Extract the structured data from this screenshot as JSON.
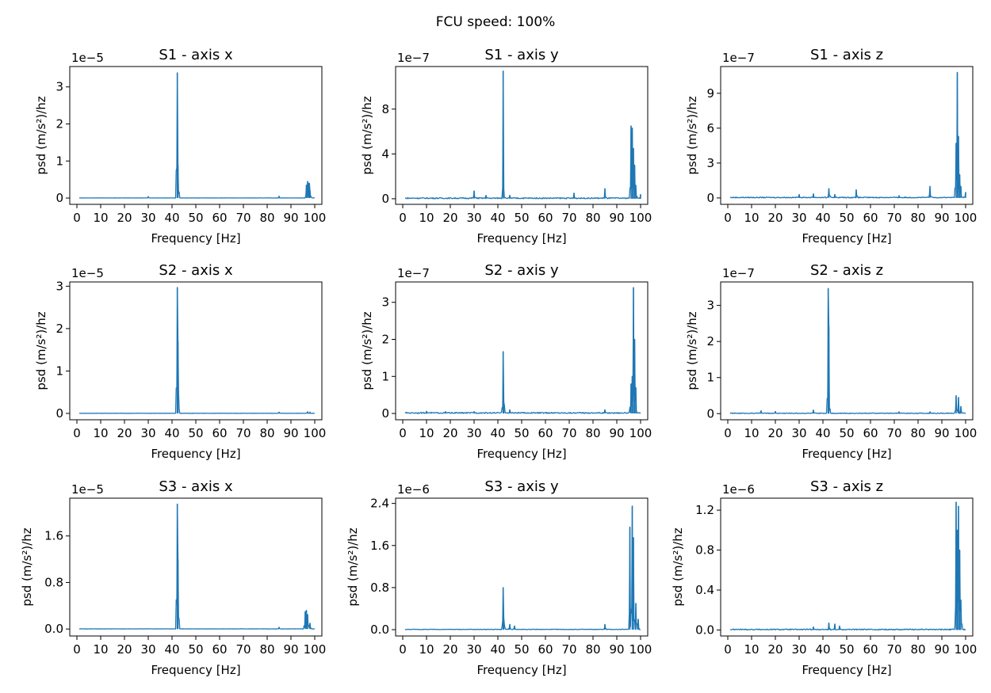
{
  "figure": {
    "suptitle": "FCU speed: 100%",
    "series_color": "#1f77b4"
  },
  "chart_data": [
    {
      "type": "line",
      "title": "S1 - axis x",
      "xlabel": "Frequency [Hz]",
      "ylabel": "psd (m/s²)/hz",
      "offset": "1e−5",
      "xlim": [
        -3,
        103
      ],
      "ylim": [
        -0.17,
        3.55
      ],
      "xticks": [
        0,
        10,
        20,
        30,
        40,
        50,
        60,
        70,
        80,
        90,
        100
      ],
      "yticks": [
        0,
        1,
        2,
        3
      ],
      "yticklabels": [
        "0",
        "1",
        "2",
        "3"
      ],
      "peaks": [
        {
          "x": 42.2,
          "y": 3.38
        },
        {
          "x": 42.5,
          "y": 0.9
        },
        {
          "x": 97,
          "y": 0.45
        },
        {
          "x": 96.5,
          "y": 0.35
        },
        {
          "x": 97.6,
          "y": 0.4
        },
        {
          "x": 98,
          "y": 0.2
        },
        {
          "x": 30,
          "y": 0.04
        },
        {
          "x": 85,
          "y": 0.05
        }
      ],
      "baseline": 0.005
    },
    {
      "type": "line",
      "title": "S1 - axis y",
      "xlabel": "Frequency [Hz]",
      "ylabel": "psd (m/s²)/hz",
      "offset": "1e−7",
      "xlim": [
        -3,
        103
      ],
      "ylim": [
        -0.5,
        11.8
      ],
      "xticks": [
        0,
        10,
        20,
        30,
        40,
        50,
        60,
        70,
        80,
        90,
        100
      ],
      "yticks": [
        0,
        4,
        8
      ],
      "yticklabels": [
        "0",
        "4",
        "8"
      ],
      "peaks": [
        {
          "x": 42.2,
          "y": 11.4
        },
        {
          "x": 30,
          "y": 0.7
        },
        {
          "x": 35,
          "y": 0.3
        },
        {
          "x": 45,
          "y": 0.3
        },
        {
          "x": 72,
          "y": 0.5
        },
        {
          "x": 85,
          "y": 0.9
        },
        {
          "x": 96,
          "y": 6.5
        },
        {
          "x": 96.5,
          "y": 6.3
        },
        {
          "x": 97,
          "y": 4.5
        },
        {
          "x": 97.5,
          "y": 3
        },
        {
          "x": 98,
          "y": 1.2
        },
        {
          "x": 100,
          "y": 0.4
        }
      ],
      "baseline": 0.1
    },
    {
      "type": "line",
      "title": "S1 - axis z",
      "xlabel": "Frequency [Hz]",
      "ylabel": "psd (m/s²)/hz",
      "offset": "1e−7",
      "xlim": [
        -3,
        103
      ],
      "ylim": [
        -0.55,
        11.3
      ],
      "xticks": [
        0,
        10,
        20,
        30,
        40,
        50,
        60,
        70,
        80,
        90,
        100
      ],
      "yticks": [
        0,
        3,
        6,
        9
      ],
      "yticklabels": [
        "0",
        "3",
        "6",
        "9"
      ],
      "peaks": [
        {
          "x": 30,
          "y": 0.3
        },
        {
          "x": 36,
          "y": 0.35
        },
        {
          "x": 42.5,
          "y": 0.8
        },
        {
          "x": 45,
          "y": 0.3
        },
        {
          "x": 54,
          "y": 0.7
        },
        {
          "x": 72,
          "y": 0.2
        },
        {
          "x": 85,
          "y": 1
        },
        {
          "x": 96,
          "y": 4.7
        },
        {
          "x": 96.5,
          "y": 10.8
        },
        {
          "x": 97,
          "y": 5.3
        },
        {
          "x": 97.5,
          "y": 2
        },
        {
          "x": 98,
          "y": 1
        },
        {
          "x": 100,
          "y": 0.5
        }
      ],
      "baseline": 0.08
    },
    {
      "type": "line",
      "title": "S2 - axis x",
      "xlabel": "Frequency [Hz]",
      "ylabel": "psd (m/s²)/hz",
      "offset": "1e−5",
      "xlim": [
        -3,
        103
      ],
      "ylim": [
        -0.15,
        3.1
      ],
      "xticks": [
        0,
        10,
        20,
        30,
        40,
        50,
        60,
        70,
        80,
        90,
        100
      ],
      "yticks": [
        0,
        1,
        2,
        3
      ],
      "yticklabels": [
        "0",
        "1",
        "2",
        "3"
      ],
      "peaks": [
        {
          "x": 42.2,
          "y": 2.97
        },
        {
          "x": 42.5,
          "y": 1.7
        },
        {
          "x": 85,
          "y": 0.03
        },
        {
          "x": 97,
          "y": 0.04
        },
        {
          "x": 98,
          "y": 0.03
        }
      ],
      "baseline": 0.005
    },
    {
      "type": "line",
      "title": "S2 - axis y",
      "xlabel": "Frequency [Hz]",
      "ylabel": "psd (m/s²)/hz",
      "offset": "1e−7",
      "xlim": [
        -3,
        103
      ],
      "ylim": [
        -0.17,
        3.55
      ],
      "xticks": [
        0,
        10,
        20,
        30,
        40,
        50,
        60,
        70,
        80,
        90,
        100
      ],
      "yticks": [
        0,
        1,
        2,
        3
      ],
      "yticklabels": [
        "0",
        "1",
        "2",
        "3"
      ],
      "peaks": [
        {
          "x": 10,
          "y": 0.06
        },
        {
          "x": 18,
          "y": 0.05
        },
        {
          "x": 30,
          "y": 0.05
        },
        {
          "x": 42.2,
          "y": 1.67
        },
        {
          "x": 42.5,
          "y": 0.3
        },
        {
          "x": 45,
          "y": 0.1
        },
        {
          "x": 85,
          "y": 0.1
        },
        {
          "x": 96,
          "y": 0.8
        },
        {
          "x": 96.5,
          "y": 1
        },
        {
          "x": 97,
          "y": 3.4
        },
        {
          "x": 97.5,
          "y": 2
        },
        {
          "x": 98,
          "y": 0.7
        }
      ],
      "baseline": 0.03
    },
    {
      "type": "line",
      "title": "S2 - axis z",
      "xlabel": "Frequency [Hz]",
      "ylabel": "psd (m/s²)/hz",
      "offset": "1e−7",
      "xlim": [
        -3,
        103
      ],
      "ylim": [
        -0.17,
        3.65
      ],
      "xticks": [
        0,
        10,
        20,
        30,
        40,
        50,
        60,
        70,
        80,
        90,
        100
      ],
      "yticks": [
        0,
        1,
        2,
        3
      ],
      "yticklabels": [
        "0",
        "1",
        "2",
        "3"
      ],
      "peaks": [
        {
          "x": 14,
          "y": 0.08
        },
        {
          "x": 20,
          "y": 0.06
        },
        {
          "x": 36,
          "y": 0.1
        },
        {
          "x": 42.2,
          "y": 3.47
        },
        {
          "x": 42.5,
          "y": 2.4
        },
        {
          "x": 72,
          "y": 0.05
        },
        {
          "x": 85,
          "y": 0.05
        },
        {
          "x": 96,
          "y": 0.5
        },
        {
          "x": 97,
          "y": 0.45
        },
        {
          "x": 98,
          "y": 0.2
        }
      ],
      "baseline": 0.02
    },
    {
      "type": "line",
      "title": "S3 - axis x",
      "xlabel": "Frequency [Hz]",
      "ylabel": "psd (m/s²)/hz",
      "offset": "1e−5",
      "xlim": [
        -3,
        103
      ],
      "ylim": [
        -0.12,
        2.25
      ],
      "xticks": [
        0,
        10,
        20,
        30,
        40,
        50,
        60,
        70,
        80,
        90,
        100
      ],
      "yticks": [
        0,
        0.8,
        1.6
      ],
      "yticklabels": [
        "0.0",
        "0.8",
        "1.6"
      ],
      "peaks": [
        {
          "x": 42.2,
          "y": 2.15
        },
        {
          "x": 42.5,
          "y": 1.2
        },
        {
          "x": 85,
          "y": 0.03
        },
        {
          "x": 96,
          "y": 0.3
        },
        {
          "x": 96.5,
          "y": 0.32
        },
        {
          "x": 97,
          "y": 0.25
        },
        {
          "x": 98,
          "y": 0.1
        }
      ],
      "baseline": 0.004
    },
    {
      "type": "line",
      "title": "S3 - axis y",
      "xlabel": "Frequency [Hz]",
      "ylabel": "psd (m/s²)/hz",
      "offset": "1e−6",
      "xlim": [
        -3,
        103
      ],
      "ylim": [
        -0.12,
        2.5
      ],
      "xticks": [
        0,
        10,
        20,
        30,
        40,
        50,
        60,
        70,
        80,
        90,
        100
      ],
      "yticks": [
        0,
        0.8,
        1.6,
        2.4
      ],
      "yticklabels": [
        "0.0",
        "0.8",
        "1.6",
        "2.4"
      ],
      "peaks": [
        {
          "x": 42.2,
          "y": 0.8
        },
        {
          "x": 42.5,
          "y": 0.2
        },
        {
          "x": 45,
          "y": 0.1
        },
        {
          "x": 47,
          "y": 0.07
        },
        {
          "x": 85,
          "y": 0.1
        },
        {
          "x": 95.5,
          "y": 1.95
        },
        {
          "x": 96.5,
          "y": 2.35
        },
        {
          "x": 97,
          "y": 1.75
        },
        {
          "x": 98,
          "y": 0.5
        },
        {
          "x": 99,
          "y": 0.2
        }
      ],
      "baseline": 0.01
    },
    {
      "type": "line",
      "title": "S3 - axis z",
      "xlabel": "Frequency [Hz]",
      "ylabel": "psd (m/s²)/hz",
      "offset": "1e−6",
      "xlim": [
        -3,
        103
      ],
      "ylim": [
        -0.06,
        1.32
      ],
      "xticks": [
        0,
        10,
        20,
        30,
        40,
        50,
        60,
        70,
        80,
        90,
        100
      ],
      "yticks": [
        0,
        0.4,
        0.8,
        1.2
      ],
      "yticklabels": [
        "0.0",
        "0.4",
        "0.8",
        "1.2"
      ],
      "peaks": [
        {
          "x": 36,
          "y": 0.03
        },
        {
          "x": 42.5,
          "y": 0.07
        },
        {
          "x": 45,
          "y": 0.06
        },
        {
          "x": 47,
          "y": 0.04
        },
        {
          "x": 96,
          "y": 1.28
        },
        {
          "x": 96.5,
          "y": 1.0
        },
        {
          "x": 97,
          "y": 1.24
        },
        {
          "x": 97.5,
          "y": 0.8
        },
        {
          "x": 98,
          "y": 0.3
        }
      ],
      "baseline": 0.01
    }
  ]
}
